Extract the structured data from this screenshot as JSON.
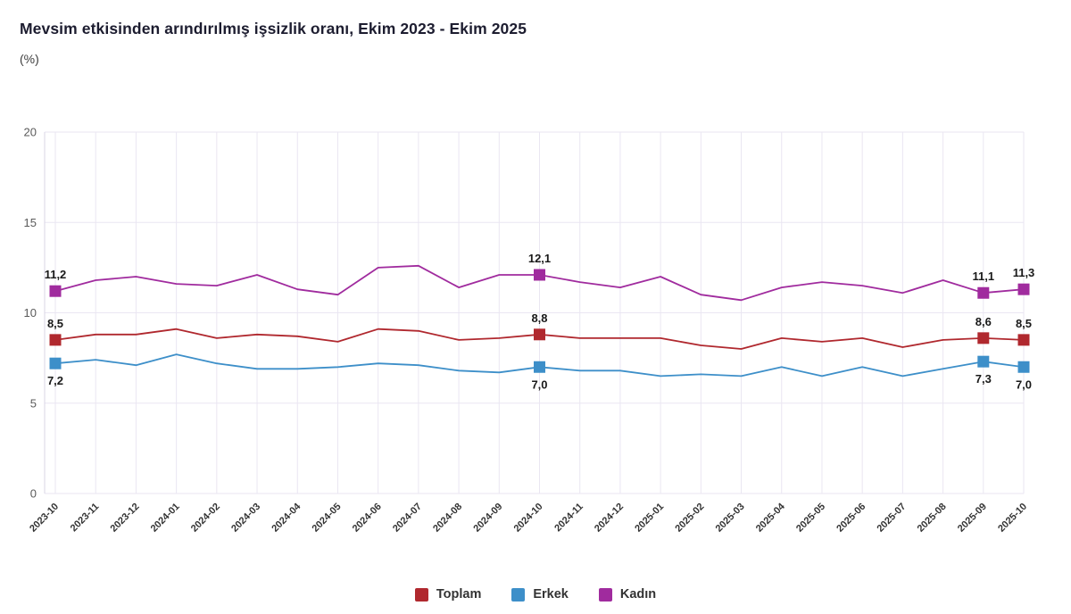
{
  "header": {
    "title": "Mevsim etkisinden arındırılmış işsizlik oranı, Ekim 2023 - Ekim 2025",
    "subtitle": "(%)"
  },
  "chart_data": {
    "type": "line",
    "title": "Mevsim etkisinden arındırılmış işsizlik oranı, Ekim 2023 - Ekim 2025",
    "ylabel": "(%)",
    "xlabel": "",
    "ylim": [
      0,
      20
    ],
    "yticks": [
      0,
      5,
      10,
      15,
      20
    ],
    "grid": true,
    "grid_color": "#eae6f2",
    "axis_color": "#d9d5e6",
    "legend_position": "bottom",
    "decimal_separator": ",",
    "categories": [
      "2023-10",
      "2023-11",
      "2023-12",
      "2024-01",
      "2024-02",
      "2024-03",
      "2024-04",
      "2024-05",
      "2024-06",
      "2024-07",
      "2024-08",
      "2024-09",
      "2024-10",
      "2024-11",
      "2024-12",
      "2025-01",
      "2025-02",
      "2025-03",
      "2025-04",
      "2025-05",
      "2025-06",
      "2025-07",
      "2025-08",
      "2025-09",
      "2025-10"
    ],
    "series": [
      {
        "name": "Toplam",
        "color": "#b0282e",
        "values": [
          8.5,
          8.8,
          8.8,
          9.1,
          8.6,
          8.8,
          8.7,
          8.4,
          9.1,
          9.0,
          8.5,
          8.6,
          8.8,
          8.6,
          8.6,
          8.6,
          8.2,
          8.0,
          8.6,
          8.4,
          8.6,
          8.1,
          8.5,
          8.6,
          8.5
        ]
      },
      {
        "name": "Erkek",
        "color": "#3d8fc9",
        "values": [
          7.2,
          7.4,
          7.1,
          7.7,
          7.2,
          6.9,
          6.9,
          7.0,
          7.2,
          7.1,
          6.8,
          6.7,
          7.0,
          6.8,
          6.8,
          6.5,
          6.6,
          6.5,
          7.0,
          6.5,
          7.0,
          6.5,
          6.9,
          7.3,
          7.0
        ]
      },
      {
        "name": "Kadın",
        "color": "#a02b9e",
        "values": [
          11.2,
          11.8,
          12.0,
          11.6,
          11.5,
          12.1,
          11.3,
          11.0,
          12.5,
          12.6,
          11.4,
          12.1,
          12.1,
          11.7,
          11.4,
          12.0,
          11.0,
          10.7,
          11.4,
          11.7,
          11.5,
          11.1,
          11.8,
          11.1,
          11.3
        ]
      }
    ],
    "annotations": [
      {
        "index": 0,
        "category": "2023-10",
        "points": [
          {
            "series": "Kadın",
            "label": "11,2",
            "position": "above"
          },
          {
            "series": "Toplam",
            "label": "8,5",
            "position": "above"
          },
          {
            "series": "Erkek",
            "label": "7,2",
            "position": "below"
          }
        ]
      },
      {
        "index": 12,
        "category": "2024-10",
        "points": [
          {
            "series": "Kadın",
            "label": "12,1",
            "position": "above"
          },
          {
            "series": "Toplam",
            "label": "8,8",
            "position": "above"
          },
          {
            "series": "Erkek",
            "label": "7,0",
            "position": "below"
          }
        ]
      },
      {
        "index": 23,
        "category": "2025-09",
        "points": [
          {
            "series": "Kadın",
            "label": "11,1",
            "position": "above"
          },
          {
            "series": "Toplam",
            "label": "8,6",
            "position": "above"
          },
          {
            "series": "Erkek",
            "label": "7,3",
            "position": "below"
          }
        ]
      },
      {
        "index": 24,
        "category": "2025-10",
        "points": [
          {
            "series": "Kadın",
            "label": "11,3",
            "position": "above"
          },
          {
            "series": "Toplam",
            "label": "8,5",
            "position": "above"
          },
          {
            "series": "Erkek",
            "label": "7,0",
            "position": "below"
          }
        ]
      }
    ]
  },
  "legend": {
    "items": [
      {
        "label": "Toplam",
        "color": "#b0282e"
      },
      {
        "label": "Erkek",
        "color": "#3d8fc9"
      },
      {
        "label": "Kadın",
        "color": "#a02b9e"
      }
    ]
  }
}
